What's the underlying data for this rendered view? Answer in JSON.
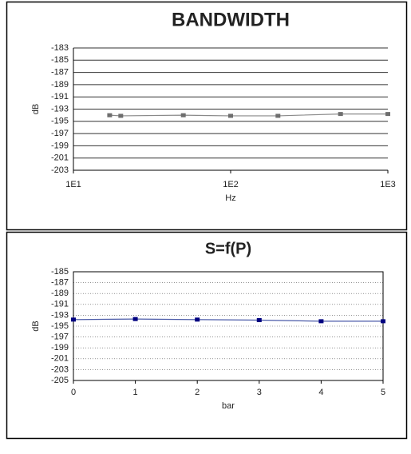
{
  "chart_data": [
    {
      "type": "line",
      "title": "BANDWIDTH",
      "x_label": "Hz",
      "y_label": "dB",
      "xscale": "log",
      "x": [
        17,
        20,
        50,
        100,
        200,
        500,
        1000
      ],
      "series": [
        {
          "color": "#8a8a8a",
          "marker_color": "#6e6e6e",
          "values": [
            -194,
            -194.1,
            -194,
            -194.1,
            -194.1,
            -193.8,
            -193.8
          ]
        }
      ],
      "xlim": [
        10,
        1000
      ],
      "xticks": [
        {
          "value": 10,
          "label": "1E1"
        },
        {
          "value": 100,
          "label": "1E2"
        },
        {
          "value": 1000,
          "label": "1E3"
        }
      ],
      "ylim": [
        -203,
        -183
      ],
      "yticks": [
        -183,
        -185,
        -187,
        -189,
        -191,
        -193,
        -195,
        -197,
        -199,
        -201,
        -203
      ],
      "grid": "solid"
    },
    {
      "type": "line",
      "title": "S=f(P)",
      "x_label": "bar",
      "y_label": "dB",
      "xscale": "linear",
      "x": [
        0,
        1,
        2,
        3,
        4,
        5
      ],
      "series": [
        {
          "color": "#4a5aa8",
          "marker_color": "#000080",
          "values": [
            -193.8,
            -193.7,
            -193.8,
            -193.9,
            -194.1,
            -194.1
          ]
        }
      ],
      "xlim": [
        0,
        5
      ],
      "xticks": [
        0,
        1,
        2,
        3,
        4,
        5
      ],
      "ylim": [
        -205,
        -185
      ],
      "yticks": [
        -185,
        -187,
        -189,
        -191,
        -193,
        -195,
        -197,
        -199,
        -201,
        -203,
        -205
      ],
      "grid": "dotted"
    }
  ]
}
